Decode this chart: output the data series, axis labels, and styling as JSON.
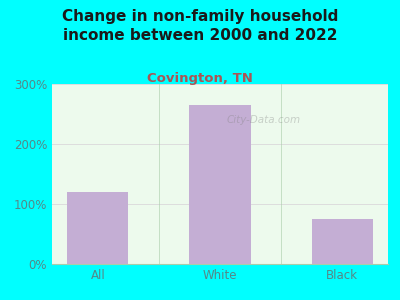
{
  "title": "Change in non-family household\nincome between 2000 and 2022",
  "subtitle": "Covington, TN",
  "categories": [
    "All",
    "White",
    "Black"
  ],
  "values": [
    120,
    265,
    75
  ],
  "bar_color": "#c4aed4",
  "background_color": "#00ffff",
  "plot_bg_color": "#edfaed",
  "title_color": "#1a1a1a",
  "subtitle_color": "#aa5555",
  "tick_label_color": "#558888",
  "grid_color": "#dddddd",
  "ylim": [
    0,
    300
  ],
  "yticks": [
    0,
    100,
    200,
    300
  ],
  "ytick_labels": [
    "0%",
    "100%",
    "200%",
    "300%"
  ],
  "title_fontsize": 11,
  "subtitle_fontsize": 9.5,
  "tick_fontsize": 8.5,
  "watermark": "City-Data.com"
}
